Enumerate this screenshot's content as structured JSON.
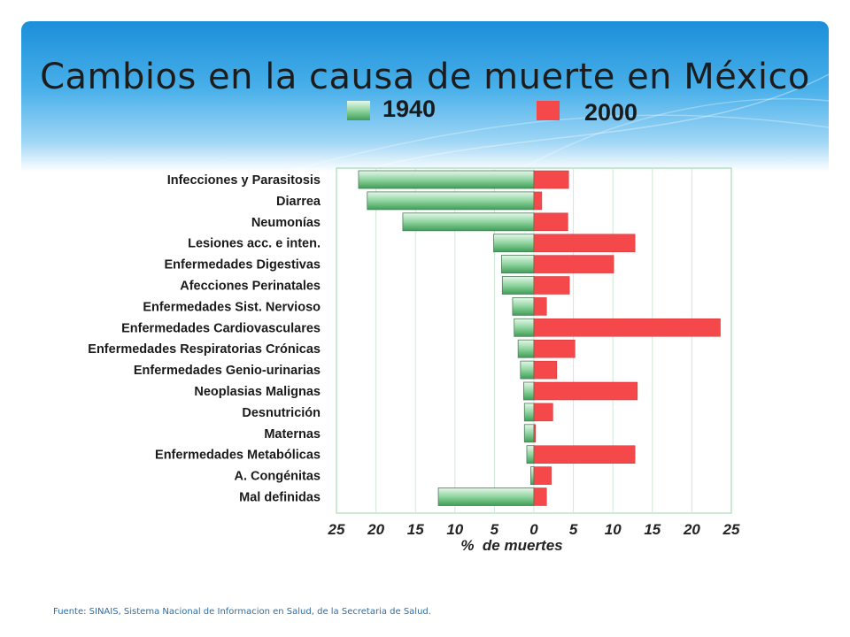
{
  "slide": {
    "title": "Cambios en la causa de muerte en México",
    "source": "Fuente: SINAIS, Sistema Nacional de Informacion en Salud, de la Secretaria de Salud."
  },
  "colors": {
    "series_1940": "#8fd49f",
    "series_2000": "#f4484a",
    "grid": "#9ad3a6"
  },
  "chart_data": {
    "type": "bar",
    "orientation": "horizontal-diverging",
    "title": "Cambios en la causa de muerte en México",
    "xlabel": "%  de muertes",
    "ylabel": "",
    "xlim": [
      -25,
      25
    ],
    "x_ticks": [
      25,
      20,
      15,
      10,
      5,
      0,
      5,
      10,
      15,
      20,
      25
    ],
    "grid": "vertical",
    "legend": "top",
    "categories": [
      "Infecciones y Parasitosis",
      "Diarrea",
      "Neumonías",
      "Lesiones acc. e inten.",
      "Enfermedades Digestivas",
      "Afecciones Perinatales",
      "Enfermedades Sist. Nervioso",
      "Enfermedades Cardiovasculares",
      "Enfermedades Respiratorias Crónicas",
      "Enfermedades Genio-urinarias",
      "Neoplasias Malignas",
      "Desnutrición",
      "Maternas",
      "Enfermedades Metabólicas",
      "A. Congénitas",
      "Mal definidas"
    ],
    "series": [
      {
        "name": "1940",
        "side": "left",
        "values": [
          22.2,
          21.1,
          16.6,
          5.1,
          4.1,
          4.0,
          2.7,
          2.5,
          2.0,
          1.7,
          1.3,
          1.2,
          1.2,
          0.9,
          0.4,
          12.1
        ]
      },
      {
        "name": "2000",
        "side": "right",
        "values": [
          4.4,
          1.0,
          4.3,
          12.8,
          10.1,
          4.5,
          1.6,
          23.6,
          5.2,
          2.9,
          13.1,
          2.4,
          0.2,
          12.8,
          2.2,
          1.6
        ]
      }
    ]
  }
}
